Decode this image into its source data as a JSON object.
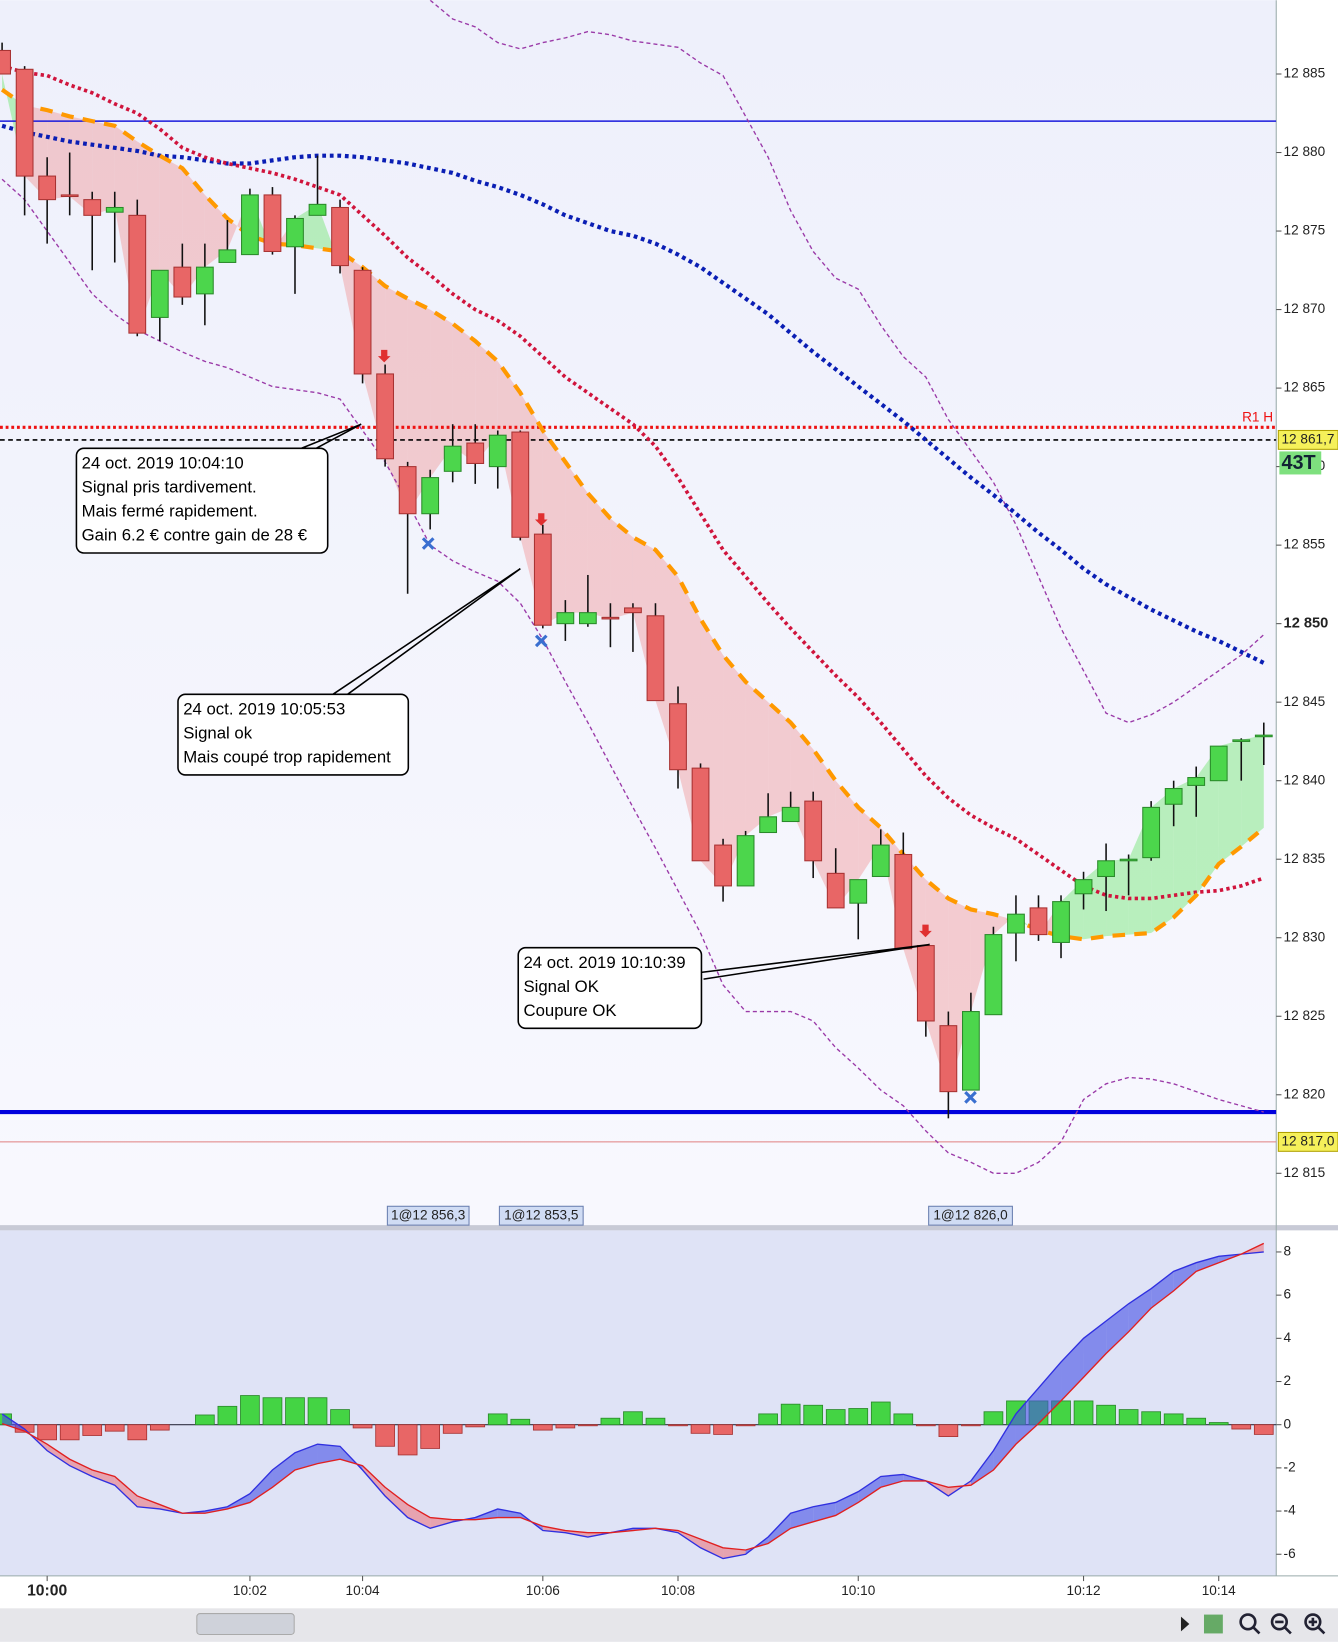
{
  "chart_data": [
    {
      "type": "candlestick",
      "categories": [
        null,
        null,
        "10:00",
        null,
        null,
        null,
        null,
        null,
        null,
        null,
        null,
        "10:02",
        null,
        null,
        null,
        null,
        "10:04",
        null,
        null,
        null,
        null,
        null,
        null,
        null,
        "10:06",
        null,
        null,
        null,
        null,
        null,
        "10:08",
        null,
        null,
        null,
        null,
        null,
        null,
        null,
        "10:10",
        null,
        null,
        null,
        null,
        null,
        null,
        null,
        null,
        null,
        "10:12",
        null,
        null,
        null,
        null,
        null,
        "10:14",
        null,
        null
      ],
      "open": [
        12886.5,
        12885.3,
        12878.5,
        12877.3,
        12877.0,
        12876.2,
        12876.0,
        12869.5,
        12872.7,
        12871.0,
        12873.0,
        12873.5,
        12877.3,
        12874.0,
        12876.0,
        12876.5,
        12872.5,
        12865.9,
        12860.0,
        12857.0,
        12859.7,
        12861.5,
        12860.0,
        12862.2,
        12855.7,
        12850.0,
        12850.0,
        12850.4,
        12851.0,
        12850.5,
        12844.9,
        12840.8,
        12835.9,
        12833.3,
        12836.7,
        12837.4,
        12838.7,
        12834.1,
        12832.2,
        12833.9,
        12835.3,
        12829.5,
        12824.4,
        12820.3,
        12825.1,
        12830.3,
        12831.9,
        12829.7,
        12832.8,
        12833.9,
        12834.9,
        12835.1,
        12838.5,
        12839.7,
        12840.0,
        12842.5,
        12842.8
      ],
      "high": [
        12887.0,
        12885.5,
        12879.7,
        12880.0,
        12877.5,
        12877.5,
        12877.0,
        12872.5,
        12874.2,
        12874.2,
        12875.7,
        12877.7,
        12877.8,
        12876.0,
        12879.8,
        12877.0,
        12872.7,
        12866.5,
        12860.3,
        12859.8,
        12862.7,
        12862.7,
        12862.3,
        12862.3,
        12856.3,
        12851.5,
        12853.1,
        12851.3,
        12851.3,
        12851.3,
        12846.0,
        12841.1,
        12836.3,
        12836.8,
        12839.2,
        12839.3,
        12839.3,
        12835.7,
        12833.7,
        12836.9,
        12836.7,
        12829.5,
        12825.3,
        12826.5,
        12830.7,
        12832.7,
        12832.7,
        12832.7,
        12834.2,
        12836.0,
        12835.3,
        12838.7,
        12840.0,
        12840.9,
        12842.2,
        12842.7,
        12843.7
      ],
      "low": [
        12885.0,
        12876.0,
        12874.2,
        12876.0,
        12872.5,
        12873.0,
        12868.3,
        12868.0,
        12870.3,
        12869.0,
        12873.0,
        12873.5,
        12873.5,
        12871.0,
        12876.0,
        12872.3,
        12865.3,
        12860.0,
        12851.9,
        12856.0,
        12859.0,
        12858.9,
        12858.6,
        12855.3,
        12849.7,
        12848.9,
        12849.8,
        12848.5,
        12848.2,
        12845.1,
        12839.5,
        12834.9,
        12832.3,
        12833.3,
        12836.7,
        12837.4,
        12833.8,
        12831.9,
        12829.9,
        12833.9,
        12829.3,
        12823.7,
        12818.5,
        12820.3,
        12825.1,
        12828.5,
        12829.8,
        12828.7,
        12831.8,
        12831.7,
        12832.7,
        12834.9,
        12837.1,
        12837.7,
        12840.0,
        12840.0,
        12841.0
      ],
      "close": [
        12885.0,
        12878.5,
        12877.0,
        12877.2,
        12876.0,
        12876.5,
        12868.5,
        12872.5,
        12870.8,
        12872.7,
        12873.8,
        12877.3,
        12873.7,
        12875.8,
        12876.7,
        12872.8,
        12865.9,
        12860.5,
        12857.0,
        12859.3,
        12861.3,
        12860.2,
        12862.0,
        12855.5,
        12849.9,
        12850.7,
        12850.7,
        12850.3,
        12850.7,
        12845.1,
        12840.7,
        12834.9,
        12833.3,
        12836.5,
        12837.7,
        12838.3,
        12834.9,
        12831.9,
        12833.7,
        12835.9,
        12829.3,
        12824.7,
        12820.2,
        12825.3,
        12830.2,
        12831.5,
        12830.2,
        12832.3,
        12833.7,
        12834.9,
        12835.0,
        12838.3,
        12839.5,
        12840.2,
        12842.2,
        12842.6,
        12842.9
      ],
      "up_color": "#4cd64c",
      "down_color": "#e86666",
      "cloud_colors": [
        "rgba(240,140,140,0.4)",
        "rgba(110,230,110,0.45)"
      ],
      "series": [
        {
          "color": "#ff9900",
          "style": "dashed",
          "width": 4,
          "values": [
            12884.0,
            12883.0,
            12882.7,
            12882.3,
            12882.0,
            12881.7,
            12880.7,
            12879.8,
            12879.0,
            12877.3,
            12875.8,
            12874.7,
            12874.2,
            12874.1,
            12873.9,
            12873.7,
            12872.7,
            12871.5,
            12870.7,
            12870.0,
            12869.1,
            12868.0,
            12866.7,
            12864.7,
            12862.3,
            12860.3,
            12858.3,
            12856.7,
            12855.5,
            12854.7,
            12853.0,
            12850.3,
            12848.0,
            12846.3,
            12845.0,
            12843.7,
            12842.0,
            12840.0,
            12838.3,
            12837.0,
            12835.3,
            12833.7,
            12832.5,
            12831.8,
            12831.5,
            12831.1,
            12830.5,
            12830.1,
            12829.9,
            12830.1,
            12830.2,
            12830.3,
            12831.3,
            12832.7,
            12834.7,
            12835.8,
            12837.0
          ]
        },
        {
          "color": "#d0143c",
          "style": "dotted",
          "width": 3.5,
          "values": [
            12885.5,
            12885.1,
            12884.9,
            12884.3,
            12883.8,
            12883.1,
            12882.5,
            12881.5,
            12880.3,
            12879.7,
            12879.3,
            12879.0,
            12878.7,
            12878.3,
            12877.8,
            12877.3,
            12876.0,
            12874.7,
            12873.3,
            12872.2,
            12871.0,
            12870.0,
            12869.3,
            12868.3,
            12867.0,
            12865.7,
            12864.7,
            12863.7,
            12862.7,
            12861.3,
            12859.3,
            12857.0,
            12854.7,
            12853.0,
            12851.3,
            12849.7,
            12848.2,
            12846.7,
            12845.3,
            12843.7,
            12842.0,
            12840.3,
            12838.9,
            12837.8,
            12837.0,
            12836.3,
            12835.3,
            12834.3,
            12833.3,
            12832.7,
            12832.5,
            12832.5,
            12832.7,
            12832.9,
            12833.0,
            12833.3,
            12833.8
          ]
        },
        {
          "color": "#0a1eb4",
          "style": "dotted",
          "width": 4,
          "values": [
            12881.7,
            12881.3,
            12881.0,
            12880.7,
            12880.5,
            12880.3,
            12880.1,
            12879.8,
            12879.7,
            12879.5,
            12879.3,
            12879.3,
            12879.5,
            12879.7,
            12879.8,
            12879.8,
            12879.7,
            12879.5,
            12879.3,
            12879.0,
            12878.7,
            12878.2,
            12877.8,
            12877.3,
            12876.7,
            12876.0,
            12875.5,
            12875.0,
            12874.7,
            12874.2,
            12873.5,
            12872.7,
            12871.7,
            12870.7,
            12869.7,
            12868.5,
            12867.3,
            12866.2,
            12865.1,
            12864.0,
            12862.9,
            12861.7,
            12860.5,
            12859.3,
            12858.2,
            12857.0,
            12855.8,
            12854.7,
            12853.5,
            12852.5,
            12851.7,
            12850.9,
            12850.2,
            12849.5,
            12848.9,
            12848.2,
            12847.5
          ]
        },
        {
          "color": "#9a3aa8",
          "style": "dashed",
          "width": 1.3,
          "values": [
            null,
            null,
            null,
            null,
            null,
            null,
            null,
            null,
            null,
            null,
            null,
            null,
            null,
            null,
            null,
            null,
            null,
            null,
            null,
            12889.7,
            12888.5,
            12888.0,
            12887.0,
            12886.6,
            12887.0,
            12887.3,
            12887.7,
            12887.5,
            12887.1,
            12886.9,
            12886.7,
            12885.7,
            12884.9,
            12882.3,
            12879.7,
            12876.3,
            12873.7,
            12872.0,
            12871.3,
            12869.0,
            12867.0,
            12865.7,
            12863.0,
            12861.0,
            12859.0,
            12856.3,
            12853.0,
            12849.7,
            12847.0,
            12844.3,
            12843.7,
            12844.2,
            12845.0,
            12846.0,
            12847.0,
            12848.0,
            12849.3
          ]
        },
        {
          "color": "#9a3aa8",
          "style": "dashed",
          "width": 1.3,
          "values": [
            12878.3,
            12877.0,
            12875.0,
            12873.0,
            12871.0,
            12869.7,
            12868.7,
            12868.0,
            12867.3,
            12866.7,
            12866.3,
            12865.7,
            12865.1,
            12864.9,
            12864.7,
            12864.3,
            12862.3,
            12860.3,
            12857.7,
            12855.0,
            12854.0,
            12853.3,
            12852.7,
            12851.3,
            12849.0,
            12846.3,
            12843.7,
            12841.0,
            12838.3,
            12835.7,
            12833.0,
            12830.3,
            12827.0,
            12825.3,
            12825.3,
            12825.3,
            12824.7,
            12823.0,
            12821.7,
            12820.3,
            12819.3,
            12817.7,
            12816.3,
            12815.7,
            12815.0,
            12815.0,
            12815.7,
            12817.0,
            12819.7,
            12820.7,
            12821.1,
            12821.0,
            12820.7,
            12820.2,
            12819.7,
            12819.3,
            12818.9
          ]
        }
      ],
      "levels": [
        {
          "value": 12882.0,
          "color": "#1a1adc",
          "width": 1.5
        },
        {
          "value": 12818.9,
          "color": "#0000dd",
          "width": 4
        },
        {
          "value": 12862.5,
          "color": "#ee1111",
          "style": "dotted",
          "width": 3,
          "label": "R1 H"
        },
        {
          "value": 12861.7,
          "color": "#000000",
          "style": "dashed",
          "width": 1.5,
          "label": "12 861,7",
          "axis_tag": true
        },
        {
          "value": 12817.0,
          "color": "#e08080",
          "width": 1,
          "label": "12 817,0",
          "axis_tag": true
        }
      ],
      "ylim": [
        12811.7,
        12889.7
      ],
      "yticks": [
        {
          "value": 12815,
          "label": "12 815"
        },
        {
          "value": 12820,
          "label": "12 820"
        },
        {
          "value": 12825,
          "label": "12 825"
        },
        {
          "value": 12830,
          "label": "12 830"
        },
        {
          "value": 12835,
          "label": "12 835"
        },
        {
          "value": 12840,
          "label": "12 840"
        },
        {
          "value": 12845,
          "label": "12 845"
        },
        {
          "value": 12850,
          "label": "12 850"
        },
        {
          "value": 12855,
          "label": "12 855"
        },
        {
          "value": 12860,
          "label": "12 860"
        },
        {
          "value": 12865,
          "label": "12 865"
        },
        {
          "value": 12870,
          "label": "12 870"
        },
        {
          "value": 12875,
          "label": "12 875"
        },
        {
          "value": 12880,
          "label": "12 880"
        },
        {
          "value": 12885,
          "label": "12 885"
        }
      ],
      "timer": "43T",
      "annotations": [
        {
          "lines": [
            "24 oct. 2019 10:04:10",
            "Signal pris tardivement.",
            "Mais fermé rapidement.",
            "Gain 6.2 € contre gain de 28 €"
          ]
        },
        {
          "lines": [
            "24 oct. 2019 10:05:53",
            "Signal ok",
            "Mais coupé trop rapidement"
          ]
        },
        {
          "lines": [
            "24 oct. 2019 10:10:39",
            "Signal OK",
            "Coupure OK"
          ]
        }
      ],
      "orders": [
        "1@12 856,3",
        "1@12 853,5",
        "1@12 826,0"
      ]
    },
    {
      "type": "macd",
      "hist_colors": [
        "#44d444",
        "#e86666"
      ],
      "histogram": [
        0.5,
        -0.35,
        -0.7,
        -0.7,
        -0.5,
        -0.3,
        -0.7,
        -0.25,
        0,
        0.45,
        0.85,
        1.35,
        1.25,
        1.25,
        1.25,
        0.7,
        -0.15,
        -1.0,
        -1.4,
        -1.1,
        -0.4,
        -0.1,
        0.5,
        0.25,
        -0.25,
        -0.15,
        -0.05,
        0.3,
        0.6,
        0.3,
        -0.05,
        -0.4,
        -0.45,
        -0.05,
        0.5,
        0.95,
        0.9,
        0.7,
        0.75,
        1.05,
        0.5,
        -0.05,
        -0.55,
        -0.05,
        0.6,
        1.1,
        1.1,
        1.1,
        1.1,
        0.9,
        0.7,
        0.6,
        0.5,
        0.3,
        0.1,
        -0.2,
        -0.45
      ],
      "series": [
        {
          "color": "#3030e0",
          "fill": "rgba(70,80,230,0.6)",
          "values": [
            0.5,
            -0.2,
            -1.2,
            -1.9,
            -2.4,
            -2.8,
            -3.8,
            -3.9,
            -4.1,
            -4.0,
            -3.8,
            -3.2,
            -2.1,
            -1.3,
            -0.9,
            -1.0,
            -2.1,
            -3.3,
            -4.3,
            -4.8,
            -4.5,
            -4.3,
            -3.9,
            -4.1,
            -4.9,
            -5.0,
            -5.2,
            -5.0,
            -4.8,
            -4.8,
            -5.0,
            -5.7,
            -6.2,
            -6.0,
            -5.2,
            -4.1,
            -3.8,
            -3.6,
            -3.1,
            -2.4,
            -2.3,
            -2.6,
            -3.3,
            -2.6,
            -1.2,
            0.5,
            1.7,
            2.9,
            4.0,
            4.8,
            5.6,
            6.3,
            7.1,
            7.5,
            7.8,
            7.9,
            8.0
          ]
        },
        {
          "color": "#e02020",
          "fill": "rgba(235,120,130,0.6)",
          "values": [
            0.05,
            -0.3,
            -0.9,
            -1.6,
            -2.1,
            -2.4,
            -3.3,
            -3.7,
            -4.1,
            -4.1,
            -3.9,
            -3.6,
            -2.9,
            -2.1,
            -1.8,
            -1.6,
            -1.9,
            -2.9,
            -3.7,
            -4.3,
            -4.4,
            -4.4,
            -4.3,
            -4.3,
            -4.7,
            -4.9,
            -5.0,
            -5.0,
            -4.9,
            -4.8,
            -4.9,
            -5.3,
            -5.7,
            -5.8,
            -5.5,
            -4.8,
            -4.5,
            -4.2,
            -3.6,
            -2.9,
            -2.6,
            -2.6,
            -2.9,
            -2.8,
            -2.1,
            -0.9,
            0.05,
            1.1,
            2.2,
            3.3,
            4.3,
            5.4,
            6.2,
            7.1,
            7.5,
            7.9,
            8.4
          ]
        }
      ],
      "ylim": [
        -7,
        9
      ],
      "yticks": [
        8,
        6,
        4,
        2,
        0,
        -2,
        -4,
        -6
      ]
    }
  ]
}
